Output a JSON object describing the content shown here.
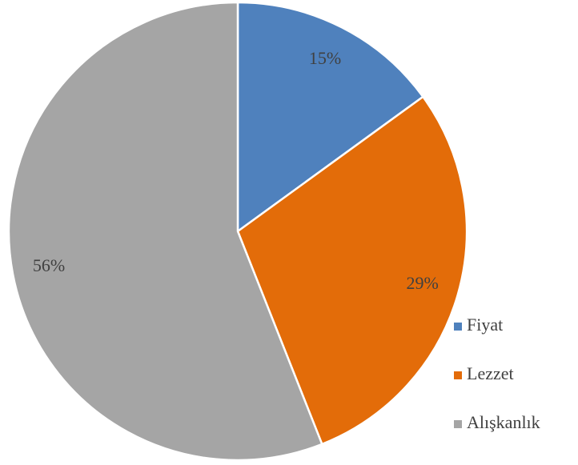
{
  "chart_data": {
    "type": "pie",
    "categories": [
      "Fiyat",
      "Lezzet",
      "Alışkanlık"
    ],
    "values": [
      15,
      29,
      56
    ],
    "value_labels": [
      "15%",
      "29%",
      "56%"
    ],
    "colors": [
      "#4f81bd",
      "#e36c09",
      "#a5a5a5"
    ],
    "legend": "right"
  }
}
